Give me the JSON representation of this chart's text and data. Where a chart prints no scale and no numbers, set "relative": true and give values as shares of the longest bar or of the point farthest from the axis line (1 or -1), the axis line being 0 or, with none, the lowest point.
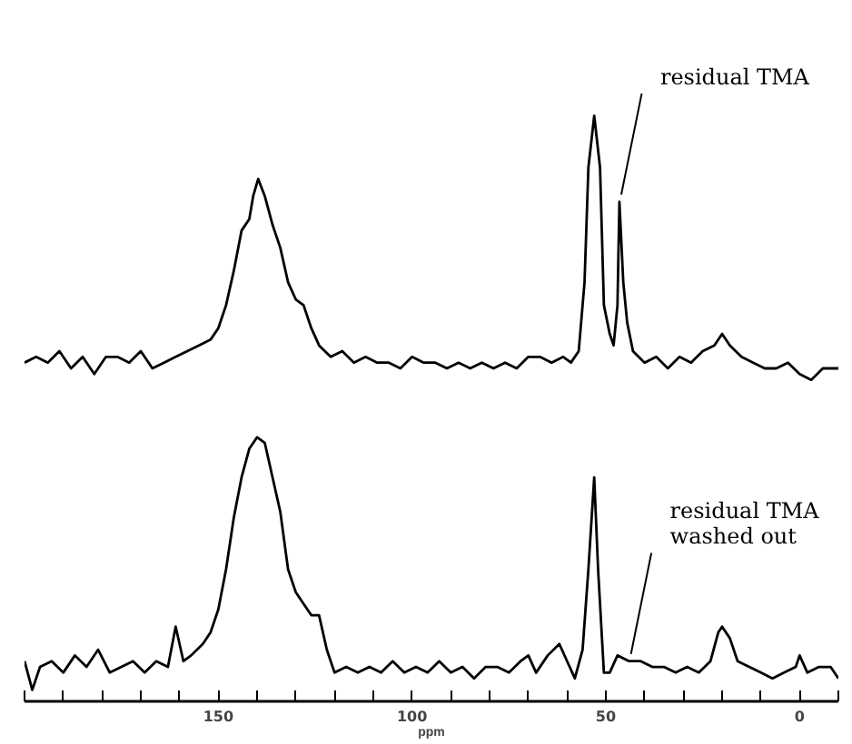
{
  "chart_data": {
    "type": "line",
    "relative": true,
    "xlabel": "ppm",
    "xlim": [
      200,
      -10
    ],
    "xticks": [
      {
        "value": 200,
        "label": null
      },
      {
        "value": 190,
        "label": null
      },
      {
        "value": 180,
        "label": null
      },
      {
        "value": 170,
        "label": null
      },
      {
        "value": 160,
        "label": null
      },
      150,
      {
        "value": 140,
        "label": null
      },
      {
        "value": 130,
        "label": null
      },
      {
        "value": 120,
        "label": null
      },
      {
        "value": 110,
        "label": null
      },
      100,
      {
        "value": 90,
        "label": null
      },
      {
        "value": 80,
        "label": null
      },
      {
        "value": 70,
        "label": null
      },
      {
        "value": 60,
        "label": null
      },
      50,
      {
        "value": 40,
        "label": null
      },
      {
        "value": 30,
        "label": null
      },
      {
        "value": 20,
        "label": null
      },
      {
        "value": 10,
        "label": null
      },
      0,
      {
        "value": -10,
        "label": null
      }
    ],
    "grid": false,
    "series": [
      {
        "color": "#000000",
        "x": [
          200,
          197,
          194,
          191,
          188,
          185,
          182,
          179,
          176,
          173,
          170,
          167,
          164,
          161,
          158,
          155,
          152,
          150,
          148,
          146,
          144,
          142,
          141,
          139.7,
          138,
          136,
          134,
          132,
          130,
          128,
          126,
          124,
          121,
          118,
          115,
          112,
          109,
          106,
          103,
          100,
          97,
          94,
          91,
          88,
          85,
          82,
          79,
          76,
          73,
          70,
          67,
          64,
          61,
          59,
          57,
          55.5,
          54.5,
          53,
          51.5,
          50.5,
          49,
          48,
          47,
          46.5,
          45.5,
          44.5,
          43,
          40,
          37,
          34,
          31,
          28,
          25,
          22,
          20,
          18,
          15,
          12,
          9,
          6,
          3,
          0,
          -3,
          -6,
          -10
        ],
        "values": [
          0.57,
          0.58,
          0.57,
          0.59,
          0.56,
          0.58,
          0.55,
          0.58,
          0.58,
          0.57,
          0.59,
          0.56,
          0.57,
          0.58,
          0.59,
          0.6,
          0.61,
          0.63,
          0.67,
          0.73,
          0.8,
          0.82,
          0.86,
          0.89,
          0.86,
          0.81,
          0.77,
          0.71,
          0.68,
          0.67,
          0.63,
          0.6,
          0.58,
          0.59,
          0.57,
          0.58,
          0.57,
          0.57,
          0.56,
          0.58,
          0.57,
          0.57,
          0.56,
          0.57,
          0.56,
          0.57,
          0.56,
          0.57,
          0.56,
          0.58,
          0.58,
          0.57,
          0.58,
          0.57,
          0.59,
          0.71,
          0.91,
          1.0,
          0.91,
          0.67,
          0.62,
          0.6,
          0.67,
          0.85,
          0.71,
          0.64,
          0.59,
          0.57,
          0.58,
          0.56,
          0.58,
          0.57,
          0.59,
          0.6,
          0.62,
          0.6,
          0.58,
          0.57,
          0.56,
          0.56,
          0.57,
          0.55,
          0.54,
          0.56,
          0.56
        ]
      },
      {
        "color": "#000000",
        "x": [
          200,
          198,
          196,
          193,
          190,
          187,
          184,
          181,
          178,
          175,
          172,
          169,
          166,
          163,
          161,
          159,
          157,
          154,
          152,
          150,
          148,
          146,
          144,
          142,
          140,
          138,
          136,
          134,
          132,
          130,
          128,
          126,
          124,
          122,
          120,
          117,
          114,
          111,
          108,
          105,
          102,
          99,
          96,
          93,
          90,
          87,
          84,
          81,
          78,
          75,
          72,
          70,
          68,
          65,
          62,
          60,
          58,
          56,
          54.5,
          53,
          52,
          50.5,
          49,
          47,
          44,
          41,
          38,
          35,
          32,
          29,
          26,
          23,
          21,
          20,
          18,
          16,
          13,
          10,
          7,
          4,
          1,
          0,
          -2,
          -5,
          -8,
          -10
        ],
        "values": [
          0.05,
          0.0,
          0.04,
          0.05,
          0.03,
          0.06,
          0.04,
          0.07,
          0.03,
          0.04,
          0.05,
          0.03,
          0.05,
          0.04,
          0.11,
          0.05,
          0.06,
          0.08,
          0.1,
          0.14,
          0.21,
          0.3,
          0.37,
          0.42,
          0.44,
          0.43,
          0.37,
          0.31,
          0.21,
          0.17,
          0.15,
          0.13,
          0.13,
          0.07,
          0.03,
          0.04,
          0.03,
          0.04,
          0.03,
          0.05,
          0.03,
          0.04,
          0.03,
          0.05,
          0.03,
          0.04,
          0.02,
          0.04,
          0.04,
          0.03,
          0.05,
          0.06,
          0.03,
          0.06,
          0.08,
          0.05,
          0.02,
          0.07,
          0.21,
          0.37,
          0.21,
          0.03,
          0.03,
          0.06,
          0.05,
          0.05,
          0.04,
          0.04,
          0.03,
          0.04,
          0.03,
          0.05,
          0.1,
          0.11,
          0.09,
          0.05,
          0.04,
          0.03,
          0.02,
          0.03,
          0.04,
          0.06,
          0.03,
          0.04,
          0.04,
          0.02
        ]
      }
    ],
    "annotations": [
      {
        "text": "residual TMA",
        "x": 46.5,
        "y": 0.85
      },
      {
        "text": "residual TMA\nwashed out",
        "x": 44,
        "y": 0.05
      }
    ]
  }
}
